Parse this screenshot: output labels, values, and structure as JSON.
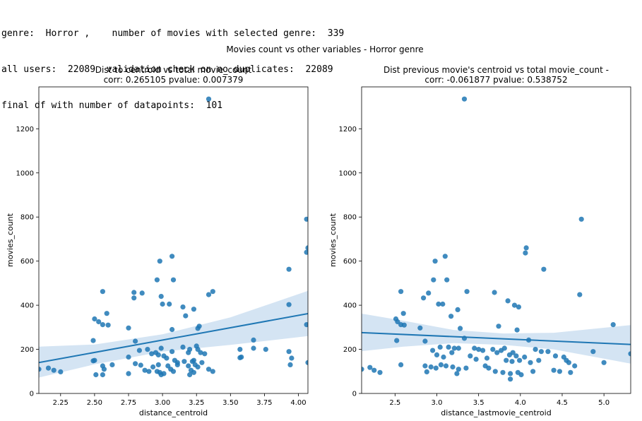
{
  "console_lines": [
    "genre:  Horror ,    number of movies with selected genre:  339",
    "all users:  22089  validation check on no duplicates:  22089",
    "final df with number of datapoints:  101"
  ],
  "suptitle": "Movies count vs other variables - Horror genre",
  "colors": {
    "point": "#1f77b4",
    "line": "#1f77b4",
    "band": "#c6dbef"
  },
  "chart_data": [
    {
      "type": "scatter",
      "title": "Dist to centroid vs total movie_count",
      "subtitle": "corr: 0.265105  pvalue: 0.007379",
      "xlabel": "distance_centroid",
      "ylabel": "movies_count",
      "xlim": [
        2.09,
        4.07
      ],
      "ylim": [
        0,
        1390
      ],
      "xticks": [
        2.25,
        2.5,
        2.75,
        3.0,
        3.25,
        3.5,
        3.75,
        4.0
      ],
      "xtick_labels": [
        "2.25",
        "2.50",
        "2.75",
        "3.00",
        "3.25",
        "3.50",
        "3.75",
        "4.00"
      ],
      "yticks": [
        0,
        200,
        400,
        600,
        800,
        1000,
        1200
      ],
      "ytick_labels": [
        "0",
        "200",
        "400",
        "600",
        "800",
        "1000",
        "1200"
      ],
      "grid": false,
      "regression": {
        "x": [
          2.09,
          4.07
        ],
        "y": [
          140,
          362
        ]
      },
      "ci_band": {
        "x": [
          2.09,
          2.5,
          3.0,
          3.5,
          4.07
        ],
        "lower": [
          72,
          132,
          190,
          220,
          260
        ],
        "upper": [
          212,
          222,
          268,
          345,
          465
        ]
      },
      "points": [
        [
          3.34,
          1335
        ],
        [
          4.06,
          790
        ],
        [
          4.07,
          660
        ],
        [
          4.06,
          640
        ],
        [
          3.93,
          563
        ],
        [
          3.07,
          622
        ],
        [
          2.98,
          600
        ],
        [
          2.96,
          515
        ],
        [
          3.08,
          515
        ],
        [
          2.56,
          462
        ],
        [
          2.79,
          458
        ],
        [
          2.85,
          455
        ],
        [
          3.37,
          462
        ],
        [
          3.34,
          448
        ],
        [
          2.79,
          433
        ],
        [
          2.99,
          440
        ],
        [
          3.15,
          392
        ],
        [
          3.23,
          382
        ],
        [
          2.59,
          363
        ],
        [
          2.5,
          338
        ],
        [
          2.53,
          325
        ],
        [
          2.56,
          312
        ],
        [
          2.6,
          310
        ],
        [
          3.0,
          405
        ],
        [
          3.05,
          405
        ],
        [
          3.17,
          352
        ],
        [
          3.27,
          305
        ],
        [
          3.26,
          295
        ],
        [
          2.75,
          297
        ],
        [
          3.93,
          403
        ],
        [
          4.06,
          312
        ],
        [
          3.07,
          290
        ],
        [
          2.8,
          237
        ],
        [
          2.49,
          240
        ],
        [
          3.57,
          200
        ],
        [
          3.67,
          205
        ],
        [
          3.76,
          200
        ],
        [
          3.93,
          190
        ],
        [
          3.95,
          160
        ],
        [
          3.94,
          130
        ],
        [
          4.07,
          140
        ],
        [
          3.57,
          162
        ],
        [
          3.58,
          165
        ],
        [
          3.67,
          242
        ],
        [
          2.83,
          195
        ],
        [
          2.89,
          200
        ],
        [
          2.92,
          180
        ],
        [
          2.95,
          185
        ],
        [
          2.97,
          175
        ],
        [
          2.99,
          205
        ],
        [
          3.01,
          170
        ],
        [
          3.03,
          160
        ],
        [
          3.07,
          190
        ],
        [
          3.09,
          150
        ],
        [
          3.11,
          140
        ],
        [
          3.15,
          210
        ],
        [
          3.19,
          185
        ],
        [
          3.2,
          200
        ],
        [
          3.22,
          145
        ],
        [
          3.23,
          150
        ],
        [
          3.26,
          200
        ],
        [
          3.28,
          185
        ],
        [
          3.31,
          180
        ],
        [
          3.25,
          215
        ],
        [
          2.49,
          148
        ],
        [
          2.5,
          150
        ],
        [
          2.56,
          125
        ],
        [
          2.57,
          110
        ],
        [
          2.63,
          130
        ],
        [
          2.75,
          165
        ],
        [
          2.8,
          135
        ],
        [
          2.84,
          128
        ],
        [
          2.87,
          105
        ],
        [
          2.9,
          100
        ],
        [
          2.93,
          120
        ],
        [
          2.96,
          100
        ],
        [
          2.97,
          130
        ],
        [
          2.98,
          95
        ],
        [
          3.01,
          90
        ],
        [
          3.04,
          125
        ],
        [
          3.06,
          110
        ],
        [
          3.08,
          100
        ],
        [
          3.11,
          130
        ],
        [
          3.16,
          145
        ],
        [
          3.19,
          125
        ],
        [
          3.21,
          105
        ],
        [
          3.23,
          95
        ],
        [
          3.24,
          130
        ],
        [
          3.26,
          120
        ],
        [
          3.29,
          140
        ],
        [
          3.34,
          110
        ],
        [
          3.37,
          100
        ],
        [
          2.09,
          110
        ],
        [
          2.16,
          115
        ],
        [
          2.2,
          105
        ],
        [
          2.25,
          98
        ],
        [
          2.51,
          85
        ],
        [
          2.56,
          85
        ],
        [
          2.75,
          90
        ],
        [
          2.99,
          85
        ],
        [
          3.2,
          85
        ]
      ]
    },
    {
      "type": "scatter",
      "title": "Dist previous movie's centroid vs total movie_count -",
      "subtitle": "corr: -0.061877  pvalue: 0.538752",
      "xlabel": "distance_lastmovie_centroid",
      "ylabel": "movies_count",
      "xlim": [
        2.1,
        5.32
      ],
      "ylim": [
        0,
        1390
      ],
      "xticks": [
        2.5,
        3.0,
        3.5,
        4.0,
        4.5,
        5.0
      ],
      "xtick_labels": [
        "2.5",
        "3.0",
        "3.5",
        "4.0",
        "4.5",
        "5.0"
      ],
      "yticks": [
        0,
        200,
        400,
        600,
        800,
        1000,
        1200
      ],
      "ytick_labels": [
        "0",
        "200",
        "400",
        "600",
        "800",
        "1000",
        "1200"
      ],
      "grid": false,
      "regression": {
        "x": [
          2.1,
          5.32
        ],
        "y": [
          276,
          222
        ]
      },
      "ci_band": {
        "x": [
          2.1,
          2.6,
          3.2,
          3.8,
          4.4,
          5.0,
          5.32
        ],
        "lower": [
          192,
          212,
          228,
          220,
          200,
          158,
          135
        ],
        "upper": [
          362,
          330,
          288,
          272,
          275,
          298,
          310
        ]
      },
      "points": [
        [
          3.33,
          1335
        ],
        [
          4.73,
          790
        ],
        [
          4.07,
          660
        ],
        [
          4.06,
          637
        ],
        [
          4.28,
          563
        ],
        [
          3.1,
          622
        ],
        [
          2.98,
          600
        ],
        [
          3.12,
          515
        ],
        [
          2.96,
          515
        ],
        [
          2.57,
          462
        ],
        [
          2.9,
          455
        ],
        [
          3.36,
          462
        ],
        [
          3.69,
          458
        ],
        [
          4.71,
          448
        ],
        [
          2.84,
          433
        ],
        [
          3.85,
          420
        ],
        [
          3.93,
          400
        ],
        [
          3.98,
          392
        ],
        [
          3.02,
          405
        ],
        [
          3.07,
          405
        ],
        [
          3.25,
          380
        ],
        [
          2.6,
          363
        ],
        [
          3.17,
          350
        ],
        [
          2.51,
          338
        ],
        [
          2.53,
          325
        ],
        [
          2.57,
          312
        ],
        [
          2.61,
          310
        ],
        [
          2.8,
          297
        ],
        [
          3.28,
          295
        ],
        [
          3.74,
          305
        ],
        [
          3.96,
          288
        ],
        [
          5.11,
          312
        ],
        [
          4.1,
          242
        ],
        [
          2.52,
          240
        ],
        [
          2.86,
          237
        ],
        [
          3.33,
          250
        ],
        [
          3.04,
          210
        ],
        [
          3.14,
          210
        ],
        [
          3.21,
          205
        ],
        [
          3.45,
          205
        ],
        [
          3.5,
          200
        ],
        [
          3.55,
          195
        ],
        [
          3.67,
          200
        ],
        [
          3.72,
          185
        ],
        [
          3.77,
          195
        ],
        [
          3.81,
          205
        ],
        [
          3.87,
          175
        ],
        [
          3.91,
          185
        ],
        [
          3.95,
          170
        ],
        [
          4.05,
          165
        ],
        [
          4.18,
          200
        ],
        [
          4.25,
          190
        ],
        [
          4.33,
          190
        ],
        [
          4.42,
          170
        ],
        [
          4.52,
          165
        ],
        [
          4.55,
          150
        ],
        [
          4.58,
          140
        ],
        [
          4.65,
          125
        ],
        [
          4.87,
          190
        ],
        [
          5.0,
          140
        ],
        [
          5.32,
          180
        ],
        [
          2.95,
          195
        ],
        [
          3.0,
          175
        ],
        [
          3.08,
          165
        ],
        [
          3.18,
          185
        ],
        [
          3.26,
          205
        ],
        [
          3.4,
          170
        ],
        [
          3.6,
          160
        ],
        [
          3.83,
          150
        ],
        [
          3.9,
          145
        ],
        [
          3.99,
          150
        ],
        [
          4.12,
          140
        ],
        [
          4.22,
          150
        ],
        [
          4.4,
          105
        ],
        [
          4.47,
          100
        ],
        [
          2.57,
          130
        ],
        [
          2.86,
          125
        ],
        [
          2.93,
          120
        ],
        [
          2.99,
          115
        ],
        [
          3.05,
          130
        ],
        [
          3.11,
          125
        ],
        [
          3.19,
          120
        ],
        [
          3.26,
          110
        ],
        [
          3.35,
          115
        ],
        [
          3.47,
          155
        ],
        [
          3.58,
          125
        ],
        [
          3.62,
          115
        ],
        [
          3.7,
          100
        ],
        [
          3.79,
          95
        ],
        [
          3.88,
          90
        ],
        [
          3.97,
          95
        ],
        [
          4.01,
          85
        ],
        [
          4.15,
          100
        ],
        [
          4.6,
          95
        ],
        [
          2.1,
          110
        ],
        [
          2.2,
          118
        ],
        [
          2.25,
          105
        ],
        [
          2.32,
          95
        ],
        [
          2.88,
          98
        ],
        [
          3.24,
          90
        ],
        [
          3.88,
          65
        ]
      ]
    }
  ]
}
